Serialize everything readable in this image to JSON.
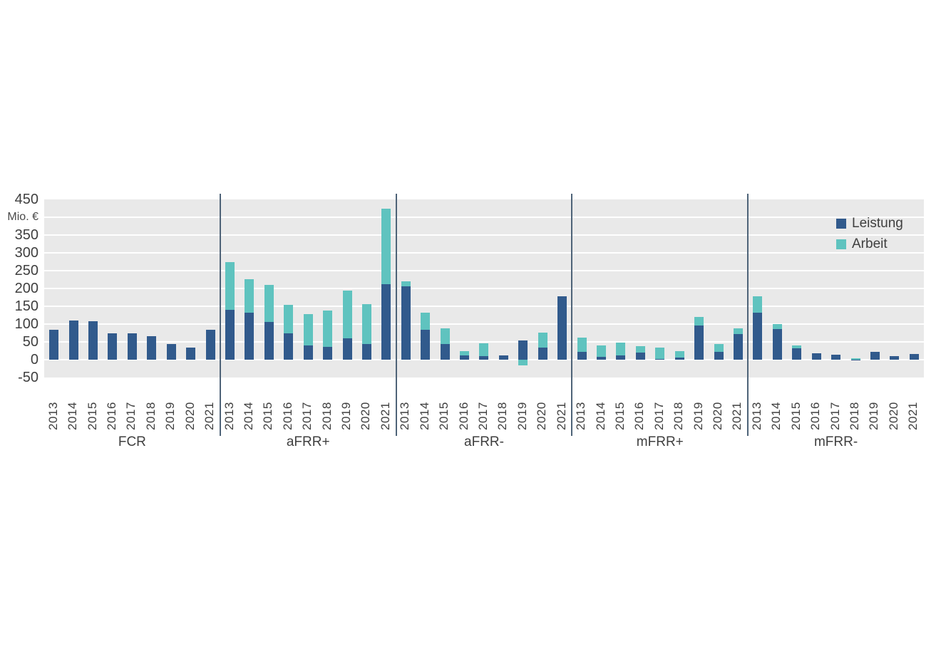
{
  "colors": {
    "page_bg": "#ffffff",
    "plot_bg": "#e9e9e9",
    "gridline": "#ffffff",
    "separator": "#4e6378",
    "text": "#3f3f3f",
    "leistung": "#315a8c",
    "arbeit": "#5fc3bf"
  },
  "legend": {
    "items": [
      {
        "label": "Leistung",
        "color": "#315a8c"
      },
      {
        "label": "Arbeit",
        "color": "#5fc3bf"
      }
    ]
  },
  "chart_data": {
    "type": "bar",
    "stacked": true,
    "title": "",
    "unit_label": "Mio. €",
    "ylim": [
      -50,
      450
    ],
    "grid": true,
    "legend_position": "top-right",
    "y_ticks": [
      {
        "value": 450,
        "label": "450"
      },
      {
        "value": 400,
        "label": "Mio. €",
        "is_unit": true
      },
      {
        "value": 350,
        "label": "350"
      },
      {
        "value": 300,
        "label": "300"
      },
      {
        "value": 250,
        "label": "250"
      },
      {
        "value": 200,
        "label": "200"
      },
      {
        "value": 150,
        "label": "150"
      },
      {
        "value": 100,
        "label": "100"
      },
      {
        "value": 50,
        "label": "50"
      },
      {
        "value": 0,
        "label": "0"
      },
      {
        "value": -50,
        "label": "-50"
      }
    ],
    "categories": [
      "2013",
      "2014",
      "2015",
      "2016",
      "2017",
      "2018",
      "2019",
      "2020",
      "2021"
    ],
    "groups": [
      {
        "label": "FCR",
        "series": [
          {
            "name": "Leistung",
            "values": [
              85,
              111,
              108,
              74,
              74,
              67,
              45,
              35,
              84
            ]
          },
          {
            "name": "Arbeit",
            "values": [
              0,
              0,
              0,
              0,
              0,
              0,
              0,
              0,
              0
            ]
          }
        ]
      },
      {
        "label": "aFRR+",
        "series": [
          {
            "name": "Leistung",
            "values": [
              140,
              132,
              106,
              75,
              40,
              37,
              60,
              45,
              212
            ]
          },
          {
            "name": "Arbeit",
            "values": [
              135,
              95,
              105,
              80,
              88,
              101,
              134,
              111,
              213
            ]
          }
        ]
      },
      {
        "label": "aFRR-",
        "series": [
          {
            "name": "Leistung",
            "values": [
              207,
              85,
              45,
              12,
              10,
              13,
              55,
              35,
              178
            ]
          },
          {
            "name": "Arbeit",
            "values": [
              13,
              48,
              43,
              13,
              36,
              0,
              -15,
              42,
              0
            ]
          }
        ]
      },
      {
        "label": "mFRR+",
        "series": [
          {
            "name": "Leistung",
            "values": [
              22,
              9,
              12,
              21,
              2,
              6,
              96,
              22,
              72
            ]
          },
          {
            "name": "Arbeit",
            "values": [
              40,
              32,
              36,
              17,
              33,
              19,
              25,
              23,
              16
            ]
          }
        ]
      },
      {
        "label": "mFRR-",
        "series": [
          {
            "name": "Leistung",
            "values": [
              133,
              87,
              33,
              18,
              15,
              1,
              23,
              11,
              16
            ]
          },
          {
            "name": "Arbeit",
            "values": [
              45,
              13,
              7,
              0,
              0,
              4,
              0,
              0,
              0
            ]
          }
        ]
      }
    ]
  }
}
